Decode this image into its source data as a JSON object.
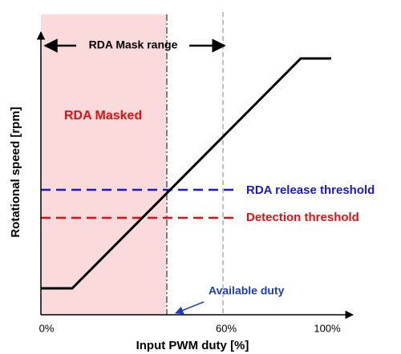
{
  "annotations": {
    "mask_range": "RDA Mask range",
    "masked": "RDA Masked",
    "release_threshold": "RDA release threshold",
    "detection_threshold": "Detection threshold",
    "available_duty": "Available duty"
  },
  "x_axis": {
    "label": "Input PWM duty [%]",
    "ticks": [
      "0%",
      "60%",
      "100%"
    ]
  },
  "y_axis": {
    "label": "Rotational speed [rpm]"
  }
}
